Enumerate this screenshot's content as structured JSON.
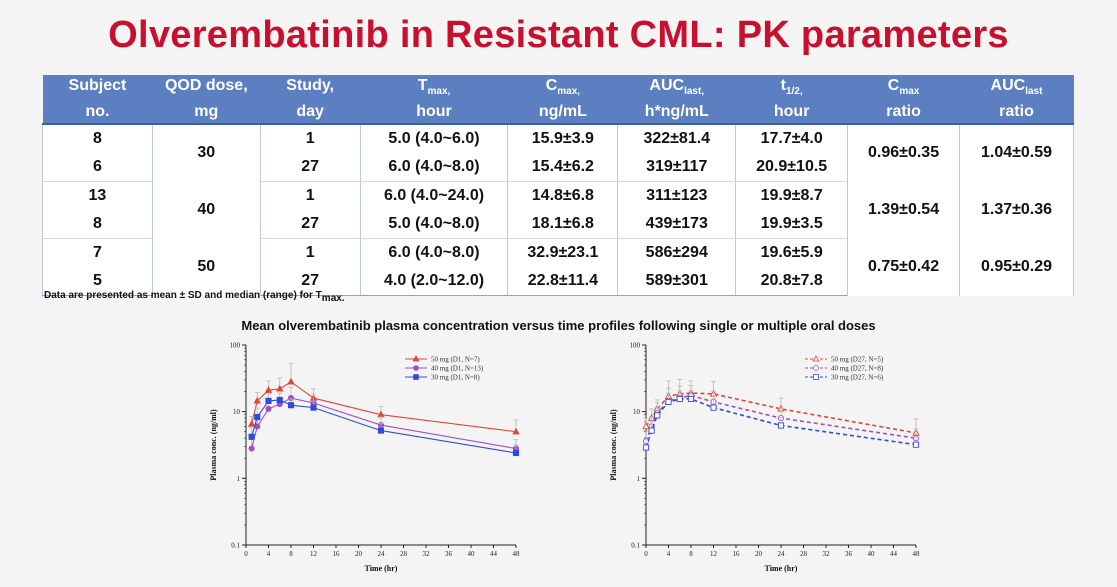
{
  "title": "Olverembatinib in Resistant CML: PK parameters",
  "table": {
    "headers": [
      {
        "line1": "Subject",
        "sub1": "",
        "line2": "no."
      },
      {
        "line1": "QOD dose,",
        "sub1": "",
        "line2": "mg"
      },
      {
        "line1": "Study,",
        "sub1": "",
        "line2": "day"
      },
      {
        "line1": "T",
        "sub1": "max,",
        "line2": "hour"
      },
      {
        "line1": "C",
        "sub1": "max,",
        "line2": "ng/mL"
      },
      {
        "line1": "AUC",
        "sub1": "last,",
        "line2": "h*ng/mL"
      },
      {
        "line1": "t",
        "sub1": "1/2,",
        "line2": "hour"
      },
      {
        "line1": "C",
        "sub1": "max",
        "line2": "ratio"
      },
      {
        "line1": "AUC",
        "sub1": "last",
        "line2": "ratio"
      }
    ],
    "groups": [
      {
        "dose": "30",
        "cmax_ratio": "0.96±0.35",
        "auc_ratio": "1.04±0.59",
        "rows": [
          {
            "subject": "8",
            "day": "1",
            "tmax": "5.0 (4.0~6.0)",
            "cmax": "15.9±3.9",
            "auc": "322±81.4",
            "t_half": "17.7±4.0"
          },
          {
            "subject": "6",
            "day": "27",
            "tmax": "6.0 (4.0~8.0)",
            "cmax": "15.4±6.2",
            "auc": "319±117",
            "t_half": "20.9±10.5"
          }
        ]
      },
      {
        "dose": "40",
        "cmax_ratio": "1.39±0.54",
        "auc_ratio": "1.37±0.36",
        "rows": [
          {
            "subject": "13",
            "day": "1",
            "tmax": "6.0 (4.0~24.0)",
            "cmax": "14.8±6.8",
            "auc": "311±123",
            "t_half": "19.9±8.7"
          },
          {
            "subject": "8",
            "day": "27",
            "tmax": "5.0 (4.0~8.0)",
            "cmax": "18.1±6.8",
            "auc": "439±173",
            "t_half": "19.9±3.5"
          }
        ]
      },
      {
        "dose": "50",
        "cmax_ratio": "0.75±0.42",
        "auc_ratio": "0.95±0.29",
        "rows": [
          {
            "subject": "7",
            "day": "1",
            "tmax": "6.0 (4.0~8.0)",
            "cmax": "32.9±23.1",
            "auc": "586±294",
            "t_half": "19.6±5.9"
          },
          {
            "subject": "5",
            "day": "27",
            "tmax": "4.0 (2.0~12.0)",
            "cmax": "22.8±11.4",
            "auc": "589±301",
            "t_half": "20.8±7.8"
          }
        ]
      }
    ]
  },
  "note": {
    "text": "Data are presented as mean ± SD and median (range) for T",
    "sub": "max."
  },
  "figure_title": "Mean olverembatinib plasma concentration versus time profiles following single or multiple oral doses",
  "chart_data": [
    {
      "type": "line",
      "xlabel": "Time (hr)",
      "ylabel": "Plasma conc. (ng/ml)",
      "yscale": "log",
      "ylim": [
        0.1,
        100
      ],
      "xlim": [
        0,
        48
      ],
      "x_ticks": [
        0,
        4,
        8,
        12,
        16,
        20,
        24,
        28,
        32,
        36,
        40,
        44,
        48
      ],
      "y_ticks": [
        0.1,
        1,
        10,
        100
      ],
      "y_tick_labels": [
        "0.1",
        "1",
        "10",
        "100"
      ],
      "legend_position": "top-right",
      "series": [
        {
          "name": "50 mg (D1, N=7)",
          "color": "#e0473a",
          "marker": "triangle",
          "dashed": false,
          "x": [
            1,
            2,
            4,
            6,
            8,
            12,
            24,
            48
          ],
          "y": [
            6.5,
            14.5,
            21,
            22,
            28,
            16,
            9,
            5
          ],
          "err": [
            2,
            5,
            8,
            10,
            25,
            6,
            3,
            2.5
          ]
        },
        {
          "name": "40 mg (D1, N=13)",
          "color": "#a04fc0",
          "marker": "circle",
          "dashed": false,
          "x": [
            1,
            2,
            4,
            6,
            8,
            12,
            24,
            48
          ],
          "y": [
            2.8,
            6,
            11,
            13,
            16,
            13.5,
            6.3,
            2.8
          ],
          "err": [
            1,
            2.5,
            5,
            6,
            7,
            5,
            2,
            1
          ]
        },
        {
          "name": "30 mg (D1, N=8)",
          "color": "#2f4bd8",
          "marker": "square",
          "dashed": false,
          "x": [
            1,
            2,
            4,
            6,
            8,
            12,
            24,
            48
          ],
          "y": [
            4.2,
            8.3,
            14.5,
            15,
            12.5,
            11.5,
            5.2,
            2.4
          ],
          "err": [
            1.5,
            3,
            4,
            4,
            3,
            3,
            1.5,
            0.8
          ]
        }
      ]
    },
    {
      "type": "line",
      "xlabel": "Time (hr)",
      "ylabel": "Plasma conc. (ng/ml)",
      "yscale": "log",
      "ylim": [
        0.1,
        100
      ],
      "xlim": [
        0,
        48
      ],
      "x_ticks": [
        0,
        4,
        8,
        12,
        16,
        20,
        24,
        28,
        32,
        36,
        40,
        44,
        48
      ],
      "y_ticks": [
        0.1,
        1,
        10,
        100
      ],
      "y_tick_labels": [
        "0.1",
        "1",
        "10",
        "100"
      ],
      "legend_position": "top-right",
      "series": [
        {
          "name": "50 mg (D27, N=5)",
          "color": "#e0473a",
          "marker": "triangle-open",
          "dashed": true,
          "x": [
            0,
            1,
            2,
            4,
            6,
            8,
            12,
            24,
            48
          ],
          "y": [
            6,
            8,
            11,
            17,
            18.5,
            19,
            18.5,
            11,
            4.8
          ],
          "err": [
            2,
            3,
            4,
            12,
            12,
            10,
            10,
            5,
            3
          ]
        },
        {
          "name": "40 mg (D27, N=8)",
          "color": "#a04fc0",
          "marker": "circle-open",
          "dashed": true,
          "x": [
            0,
            1,
            2,
            4,
            6,
            8,
            12,
            24,
            48
          ],
          "y": [
            3.6,
            6,
            9.5,
            14.5,
            16,
            17.5,
            14,
            8,
            4
          ],
          "err": [
            1.5,
            2.5,
            4,
            8,
            8,
            7,
            6,
            3,
            1.5
          ]
        },
        {
          "name": "30 mg (D27, N=6)",
          "color": "#2f4bd8",
          "marker": "square-open",
          "dashed": true,
          "x": [
            0,
            1,
            2,
            4,
            6,
            8,
            12,
            24,
            48
          ],
          "y": [
            2.9,
            5.2,
            8.8,
            14,
            15.5,
            15.5,
            11.5,
            6.2,
            3.2
          ],
          "err": [
            1,
            2,
            3,
            5,
            5,
            5,
            4,
            2,
            1
          ]
        }
      ]
    }
  ]
}
